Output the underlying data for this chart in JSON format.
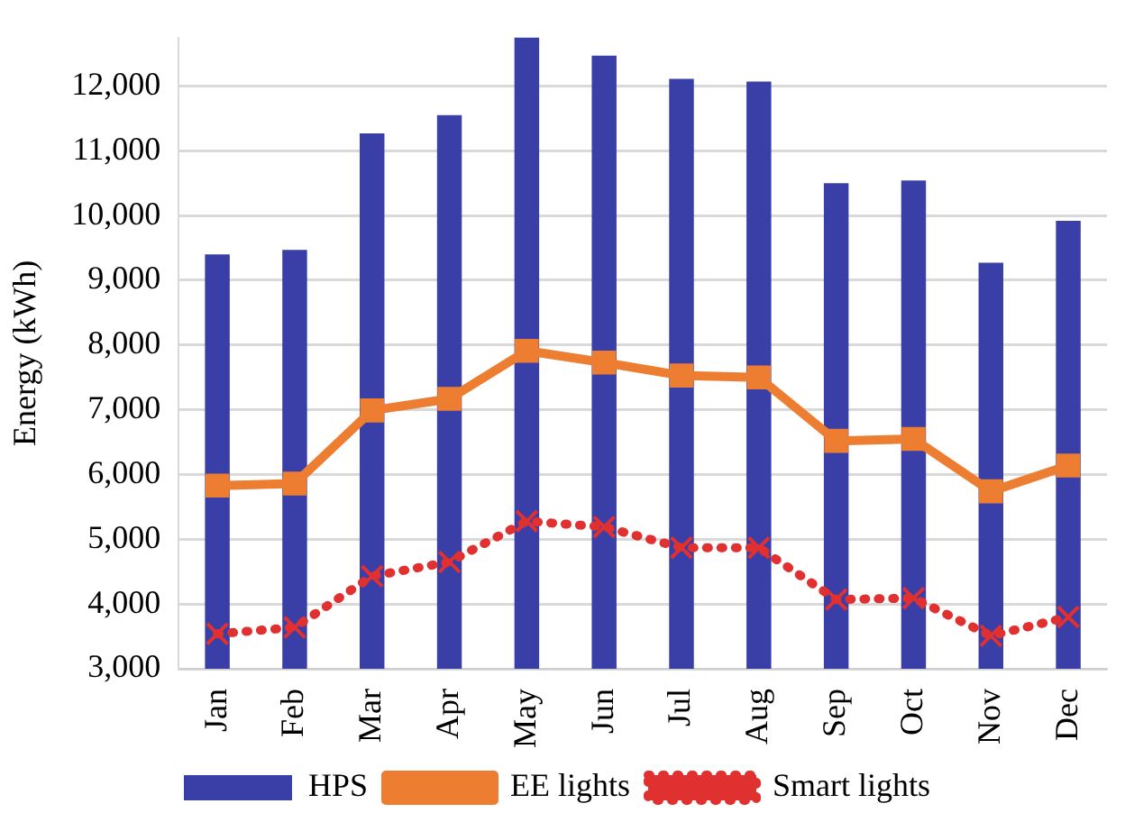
{
  "chart_data": {
    "type": "bar",
    "ylabel": "Energy (kWh)",
    "categories": [
      "Jan",
      "Feb",
      "Mar",
      "Apr",
      "May",
      "Jun",
      "Jul",
      "Aug",
      "Sep",
      "Oct",
      "Nov",
      "Dec"
    ],
    "series": [
      {
        "name": "HPS",
        "color": "#3a3fa8",
        "values": [
          9400,
          9470,
          11270,
          11550,
          12750,
          12470,
          12110,
          12070,
          10500,
          10540,
          9270,
          9920
        ]
      },
      {
        "name": "EE lights",
        "type": "line",
        "color": "#ed7d31",
        "marker": "square",
        "line_style": "solid",
        "values": [
          5830,
          5860,
          6990,
          7170,
          7910,
          7730,
          7530,
          7500,
          6520,
          6550,
          5740,
          6140
        ]
      },
      {
        "name": "Smart lights",
        "type": "line",
        "color": "#e03030",
        "marker": "cross",
        "line_style": "dotted",
        "values": [
          3540,
          3640,
          4430,
          4650,
          5280,
          5190,
          4870,
          4870,
          4070,
          4090,
          3510,
          3800
        ]
      }
    ],
    "ylim": [
      3000,
      12750
    ],
    "yticks": [
      {
        "value": 3000,
        "label": "3,000"
      },
      {
        "value": 4000,
        "label": "4,000"
      },
      {
        "value": 5000,
        "label": "5,000"
      },
      {
        "value": 6000,
        "label": "6,000"
      },
      {
        "value": 7000,
        "label": "7,000"
      },
      {
        "value": 8000,
        "label": "8,000"
      },
      {
        "value": 9000,
        "label": "9,000"
      },
      {
        "value": 10000,
        "label": "10,000"
      },
      {
        "value": 11000,
        "label": "11,000"
      },
      {
        "value": 12000,
        "label": "12,000"
      }
    ],
    "grid": "y",
    "legend": "bottom"
  }
}
